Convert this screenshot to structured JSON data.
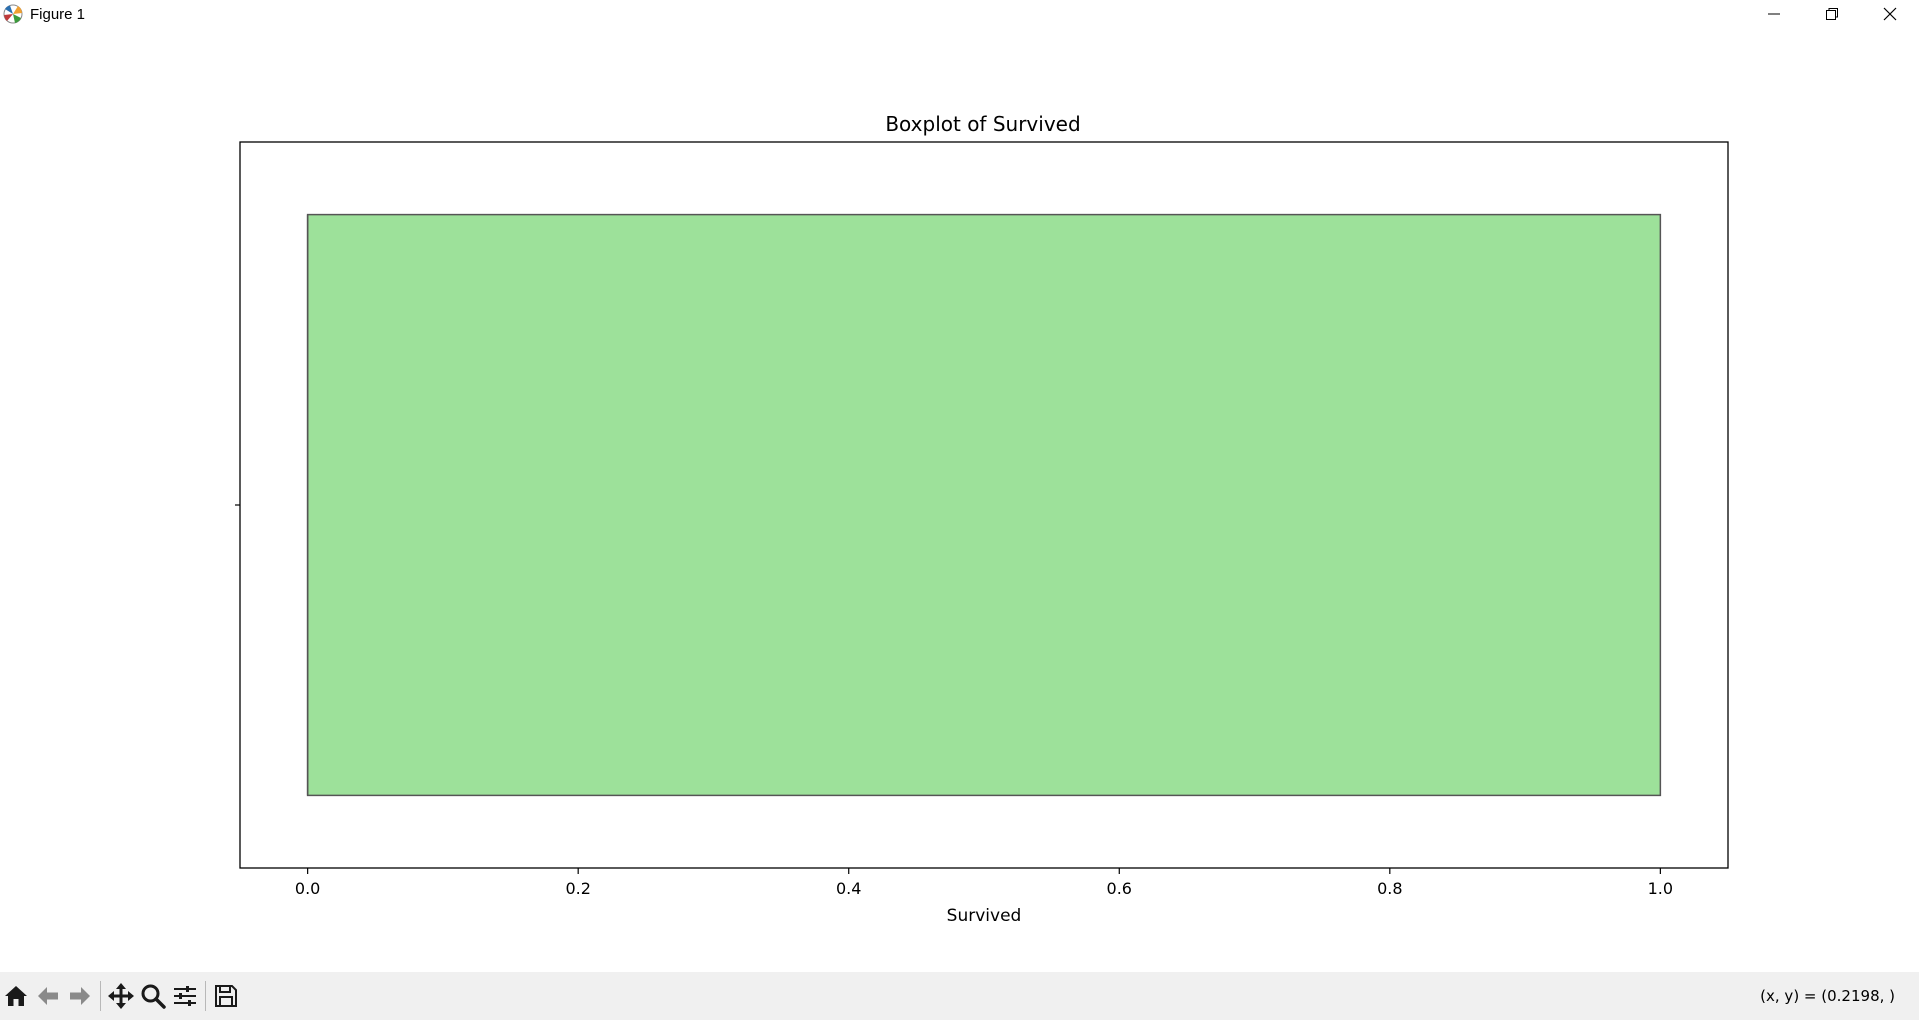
{
  "window": {
    "title": "Figure 1",
    "icons": {
      "app": "matplotlib-icon",
      "minimize": "minimize-icon",
      "maximize": "restore-icon",
      "close": "close-icon"
    }
  },
  "toolbar": {
    "icons": [
      "home-icon",
      "back-arrow-icon",
      "forward-arrow-icon",
      "pan-icon",
      "zoom-icon",
      "configure-subplots-icon",
      "save-icon"
    ],
    "coords_text": "(x, y) = (0.2198, )"
  },
  "chart_data": {
    "type": "box",
    "title": "Boxplot of Survived",
    "xlabel": "Survived",
    "ylabel": "",
    "orientation": "horizontal",
    "xlim": [
      -0.05,
      1.05
    ],
    "xticks": [
      0.0,
      0.2,
      0.4,
      0.6,
      0.8,
      1.0
    ],
    "xtick_labels": [
      "0.0",
      "0.2",
      "0.4",
      "0.6",
      "0.8",
      "1.0"
    ],
    "box": {
      "whisker_low": 0.0,
      "q1": 0.0,
      "median": 0.0,
      "q3": 1.0,
      "whisker_high": 1.0
    },
    "box_color": "#9de19a",
    "edge_color": "#555555",
    "grid": false
  }
}
